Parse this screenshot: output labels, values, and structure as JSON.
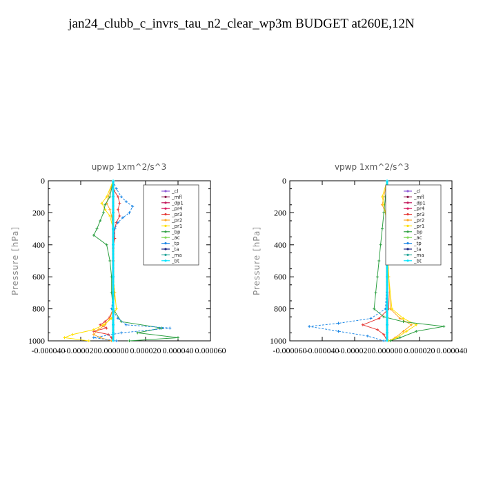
{
  "title": "jan24_clubb_c_invrs_tau_n2_clear_wp3m  BUDGET at260E,12N",
  "chart_data": [
    {
      "type": "line",
      "title": "upwp   1xm^2/s^3",
      "ylabel": "Pressure [hPa]",
      "xlim": [
        -4e-05,
        6e-05
      ],
      "ylim": [
        1000,
        0
      ],
      "xticks": [
        "-0.000040",
        "-0.000020",
        "0.000000",
        "0.000020",
        "0.000040",
        "0.000060"
      ],
      "xtick_values": [
        -4e-05,
        -2e-05,
        0,
        2e-05,
        4e-05,
        6e-05
      ],
      "yticks": [
        0,
        200,
        400,
        600,
        800,
        1000
      ],
      "legend": [
        "_cl",
        "_mfl",
        "_dp1",
        "_pr4",
        "_pr3",
        "_pr2",
        "_pr1",
        "_bp",
        "_ac",
        "_tp",
        "_ta",
        "_ma",
        "_bt"
      ],
      "series": [
        {
          "name": "_cl",
          "color": "#8e5ad6",
          "y": [
            0,
            100,
            200,
            300,
            400,
            500,
            600,
            700,
            800,
            900,
            1000
          ],
          "x": [
            0,
            0,
            0,
            0,
            0,
            0,
            0,
            0,
            0,
            0,
            0
          ]
        },
        {
          "name": "_mfl",
          "color": "#8b1a4a",
          "y": [
            0,
            100,
            200,
            300,
            400,
            500,
            600,
            700,
            800,
            900,
            1000
          ],
          "x": [
            0,
            0,
            0,
            0,
            0,
            0,
            0,
            0,
            0,
            0,
            0
          ]
        },
        {
          "name": "_dp1",
          "color": "#c2185b",
          "y": [
            0,
            100,
            200,
            300,
            400,
            500,
            600,
            700,
            800,
            900,
            1000
          ],
          "x": [
            0,
            0,
            0,
            0,
            0,
            0,
            0,
            0,
            0,
            0,
            0
          ]
        },
        {
          "name": "_pr4",
          "color": "#d81b60",
          "y": [
            0,
            100,
            200,
            300,
            400,
            500,
            600,
            700,
            800,
            900,
            1000
          ],
          "x": [
            0,
            0,
            0,
            0,
            0,
            0,
            0,
            0,
            0,
            0,
            0
          ]
        },
        {
          "name": "_pr3",
          "color": "#e53935",
          "y": [
            0,
            60,
            100,
            140,
            180,
            220,
            260,
            300,
            360,
            420,
            500,
            600,
            700,
            800,
            850,
            880,
            900,
            920,
            940,
            960,
            980,
            1000
          ],
          "x": [
            0,
            5e-07,
            3e-06,
            4e-06,
            3e-06,
            4e-06,
            2e-06,
            1e-06,
            1e-06,
            0,
            0,
            0,
            0,
            0,
            -2e-06,
            -5e-06,
            -8e-06,
            -4e-06,
            -1.2e-05,
            -3e-06,
            -1e-06,
            0
          ]
        },
        {
          "name": "_pr2",
          "color": "#ffa726",
          "y": [
            0,
            100,
            140,
            180,
            220,
            300,
            400,
            600,
            700,
            800,
            860,
            900,
            930,
            960,
            980,
            1000
          ],
          "x": [
            0,
            -3e-06,
            -4e-06,
            -2e-06,
            -1e-06,
            0,
            0,
            0,
            1e-06,
            0,
            -2e-06,
            -5e-06,
            -9e-06,
            -1.2e-05,
            -8e-06,
            -1e-06
          ]
        },
        {
          "name": "_pr1",
          "color": "#ffe000",
          "y": [
            0,
            100,
            140,
            180,
            220,
            300,
            400,
            600,
            700,
            800,
            860,
            900,
            930,
            960,
            980,
            1000
          ],
          "x": [
            0,
            -4e-06,
            -7e-06,
            -5e-06,
            -2e-06,
            0,
            0,
            0,
            1e-06,
            2e-06,
            -1e-06,
            -6e-06,
            -1.2e-05,
            -2.5e-05,
            -3e-05,
            -1.5e-05
          ]
        },
        {
          "name": "_bp",
          "color": "#2ea043",
          "y": [
            0,
            100,
            150,
            200,
            250,
            300,
            340,
            400,
            500,
            600,
            700,
            800,
            880,
            920,
            950,
            980,
            1000
          ],
          "x": [
            0,
            -2e-06,
            -5e-06,
            -6e-06,
            -8e-06,
            -1e-05,
            -1.2e-05,
            -4e-06,
            -2e-06,
            -1e-06,
            -1e-06,
            0,
            5e-06,
            3e-05,
            1.5e-05,
            4e-05,
            1e-05
          ]
        },
        {
          "name": "_ac",
          "color": "#7ed957",
          "y": [
            0,
            100,
            200,
            300,
            400,
            600,
            800,
            900,
            950,
            1000
          ],
          "x": [
            0,
            0,
            0,
            0,
            0,
            0,
            0,
            0,
            0,
            0
          ]
        },
        {
          "name": "_tp",
          "color": "#1e88e5",
          "y": [
            0,
            50,
            100,
            130,
            160,
            200,
            230,
            260,
            300,
            400,
            600,
            700,
            800,
            860,
            900,
            920,
            950,
            980,
            1000
          ],
          "x": [
            0,
            2e-06,
            5e-06,
            8e-06,
            1.2e-05,
            1e-05,
            6e-06,
            3e-06,
            1e-06,
            0,
            0,
            0,
            -1e-06,
            3e-06,
            8e-06,
            3.5e-05,
            5e-06,
            -1.2e-05,
            2e-06
          ]
        },
        {
          "name": "_ta",
          "color": "#1a237e",
          "y": [
            0,
            100,
            200,
            300,
            400,
            600,
            800,
            900,
            950,
            1000
          ],
          "x": [
            0,
            0,
            0,
            0,
            0,
            0,
            0,
            0,
            0,
            0
          ]
        },
        {
          "name": "_ma",
          "color": "#26a69a",
          "y": [
            0,
            100,
            200,
            300,
            400,
            600,
            800,
            900,
            950,
            1000
          ],
          "x": [
            0,
            0,
            0,
            0,
            0,
            0,
            0,
            0,
            0,
            0
          ]
        },
        {
          "name": "_bt",
          "color": "#00e5ff",
          "y": [
            0,
            100,
            200,
            300,
            400,
            600,
            800,
            900,
            950,
            1000
          ],
          "x": [
            0,
            0,
            0,
            0,
            0,
            0,
            0,
            0,
            0,
            0
          ]
        }
      ]
    },
    {
      "type": "line",
      "title": "vpwp   1xm^2/s^3",
      "ylabel": "Pressure [hPa]",
      "xlim": [
        -6e-05,
        4e-05
      ],
      "ylim": [
        1000,
        0
      ],
      "xticks": [
        "-0.000060",
        "-0.000040",
        "-0.000020",
        "0.000000",
        "0.000020",
        "0.000040"
      ],
      "xtick_values": [
        -6e-05,
        -4e-05,
        -2e-05,
        0,
        2e-05,
        4e-05
      ],
      "yticks": [
        0,
        200,
        400,
        600,
        800,
        1000
      ],
      "legend": [
        "_cl",
        "_mfl",
        "_dp1",
        "_pr4",
        "_pr3",
        "_pr2",
        "_pr1",
        "_bp",
        "_ac",
        "_tp",
        "_ta",
        "_ma",
        "_bt"
      ],
      "series": [
        {
          "name": "_cl",
          "color": "#8e5ad6",
          "y": [
            0,
            100,
            200,
            300,
            400,
            500,
            600,
            700,
            800,
            900,
            1000
          ],
          "x": [
            0,
            0,
            0,
            0,
            0,
            0,
            0,
            0,
            0,
            0,
            0
          ]
        },
        {
          "name": "_mfl",
          "color": "#8b1a4a",
          "y": [
            0,
            100,
            200,
            300,
            400,
            500,
            600,
            700,
            800,
            900,
            1000
          ],
          "x": [
            0,
            0,
            0,
            0,
            0,
            0,
            0,
            0,
            0,
            0,
            0
          ]
        },
        {
          "name": "_dp1",
          "color": "#c2185b",
          "y": [
            0,
            100,
            200,
            300,
            400,
            500,
            600,
            700,
            800,
            900,
            1000
          ],
          "x": [
            0,
            0,
            0,
            0,
            0,
            0,
            0,
            0,
            0,
            0,
            0
          ]
        },
        {
          "name": "_pr4",
          "color": "#d81b60",
          "y": [
            0,
            100,
            200,
            300,
            400,
            500,
            600,
            700,
            800,
            900,
            1000
          ],
          "x": [
            0,
            0,
            0,
            0,
            0,
            0,
            0,
            0,
            0,
            0,
            0
          ]
        },
        {
          "name": "_pr3",
          "color": "#e53935",
          "y": [
            0,
            100,
            200,
            300,
            400,
            600,
            800,
            860,
            900,
            930,
            960,
            1000
          ],
          "x": [
            0,
            1e-06,
            1e-06,
            0,
            0,
            0,
            1e-06,
            -5e-06,
            -1.5e-05,
            -6e-06,
            -2e-06,
            0
          ]
        },
        {
          "name": "_pr2",
          "color": "#ffa726",
          "y": [
            0,
            100,
            150,
            200,
            300,
            400,
            600,
            800,
            860,
            900,
            940,
            980,
            1000
          ],
          "x": [
            0,
            -2e-06,
            -3e-06,
            -1e-06,
            0,
            0,
            1e-06,
            2e-06,
            8e-06,
            1.5e-05,
            1e-05,
            5e-06,
            1e-06
          ]
        },
        {
          "name": "_pr1",
          "color": "#ffe000",
          "y": [
            0,
            100,
            150,
            200,
            300,
            400,
            600,
            800,
            860,
            900,
            940,
            980,
            1000
          ],
          "x": [
            0,
            -3e-06,
            -2e-06,
            -1e-06,
            0,
            0,
            1e-06,
            3e-06,
            1e-05,
            1.8e-05,
            1.2e-05,
            6e-06,
            1e-06
          ]
        },
        {
          "name": "_bp",
          "color": "#2ea043",
          "y": [
            0,
            100,
            200,
            300,
            400,
            500,
            600,
            700,
            800,
            850,
            880,
            910,
            940,
            980,
            1000
          ],
          "x": [
            0,
            -1e-06,
            -2e-06,
            -3e-06,
            -4e-06,
            -5e-06,
            -6e-06,
            -7e-06,
            -8e-06,
            -2e-06,
            1e-05,
            3.5e-05,
            1.8e-05,
            8e-06,
            2e-06
          ]
        },
        {
          "name": "_ac",
          "color": "#7ed957",
          "y": [
            0,
            100,
            200,
            300,
            400,
            600,
            800,
            900,
            950,
            1000
          ],
          "x": [
            0,
            0,
            0,
            0,
            0,
            0,
            0,
            0,
            0,
            0
          ]
        },
        {
          "name": "_tp",
          "color": "#1e88e5",
          "y": [
            0,
            100,
            140,
            200,
            300,
            400,
            600,
            800,
            860,
            890,
            910,
            940,
            970,
            1000
          ],
          "x": [
            0,
            1e-06,
            2e-06,
            1e-06,
            0,
            0,
            0,
            -1e-06,
            -1e-05,
            -3e-05,
            -4.8e-05,
            -3e-05,
            -1.2e-05,
            -2e-06
          ]
        },
        {
          "name": "_ta",
          "color": "#1a237e",
          "y": [
            0,
            100,
            200,
            300,
            400,
            600,
            800,
            900,
            950,
            1000
          ],
          "x": [
            0,
            0,
            0,
            0,
            0,
            0,
            0,
            0,
            0,
            0
          ]
        },
        {
          "name": "_ma",
          "color": "#26a69a",
          "y": [
            0,
            100,
            200,
            300,
            400,
            600,
            800,
            900,
            950,
            1000
          ],
          "x": [
            0,
            0,
            0,
            0,
            0,
            0,
            0,
            0,
            0,
            0
          ]
        },
        {
          "name": "_bt",
          "color": "#00e5ff",
          "y": [
            0,
            100,
            200,
            300,
            400,
            600,
            800,
            900,
            950,
            1000
          ],
          "x": [
            0,
            0,
            0,
            0,
            0,
            0,
            0,
            0,
            0,
            0
          ]
        }
      ]
    }
  ]
}
